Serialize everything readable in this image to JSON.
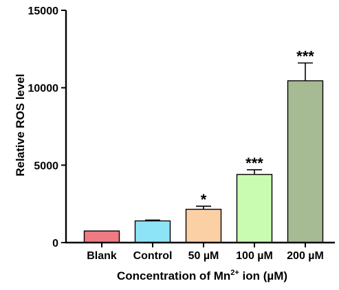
{
  "chart_data": {
    "type": "bar",
    "title": "",
    "xlabel": {
      "prefix": "Concentration of Mn",
      "superscript": "2+",
      "suffix": " ion (µM)"
    },
    "ylabel": "Relative ROS level",
    "ylim": [
      0,
      15000
    ],
    "yticks": [
      "0",
      "5000",
      "10000",
      "15000"
    ],
    "ytick_values": [
      0,
      5000,
      10000,
      15000
    ],
    "categories": [
      "Blank",
      "Control",
      "50 µM",
      "100 µM",
      "200 µM"
    ],
    "values": [
      750,
      1400,
      2150,
      4400,
      10450
    ],
    "errors": [
      0,
      50,
      200,
      300,
      1150
    ],
    "significance": [
      "",
      "",
      "*",
      "***",
      "***"
    ],
    "colors": [
      "#f07a82",
      "#8de4f7",
      "#fbd0a4",
      "#c9fcb0",
      "#a6bb94"
    ],
    "grid": false,
    "legend": "none"
  }
}
